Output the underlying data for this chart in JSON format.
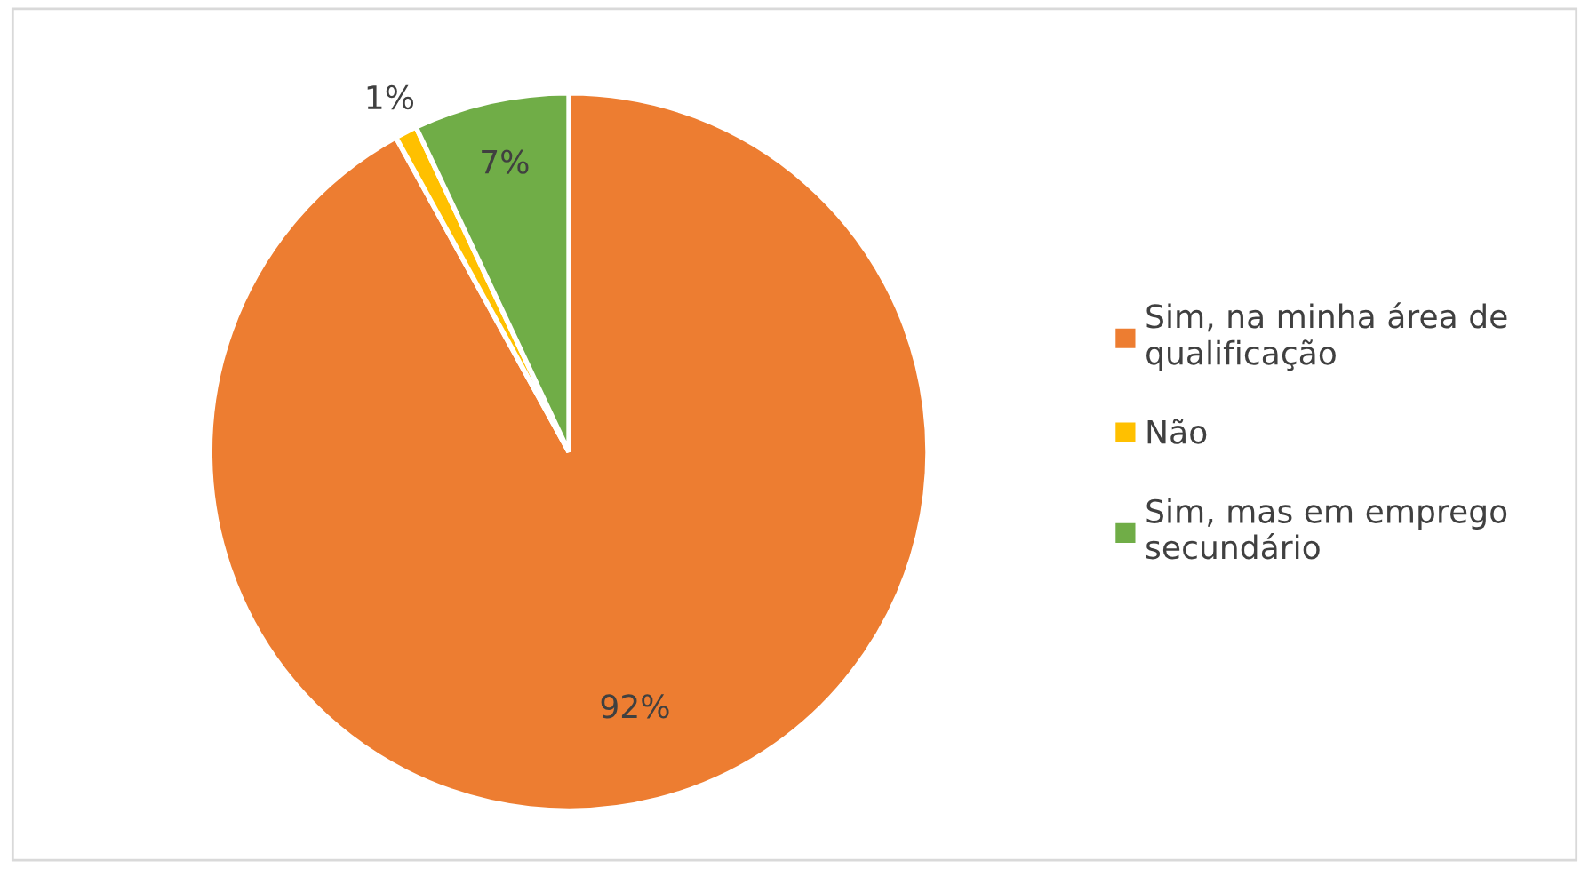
{
  "chart_data": {
    "type": "pie",
    "categories": [
      "Sim, na minha área de qualificação",
      "Não",
      "Sim, mas em emprego secundário"
    ],
    "values": [
      92,
      1,
      7
    ],
    "colors": [
      "#ed7d31",
      "#ffc000",
      "#70ad47"
    ],
    "value_labels": [
      "92%",
      "1%",
      "7%"
    ],
    "legend": "right"
  }
}
